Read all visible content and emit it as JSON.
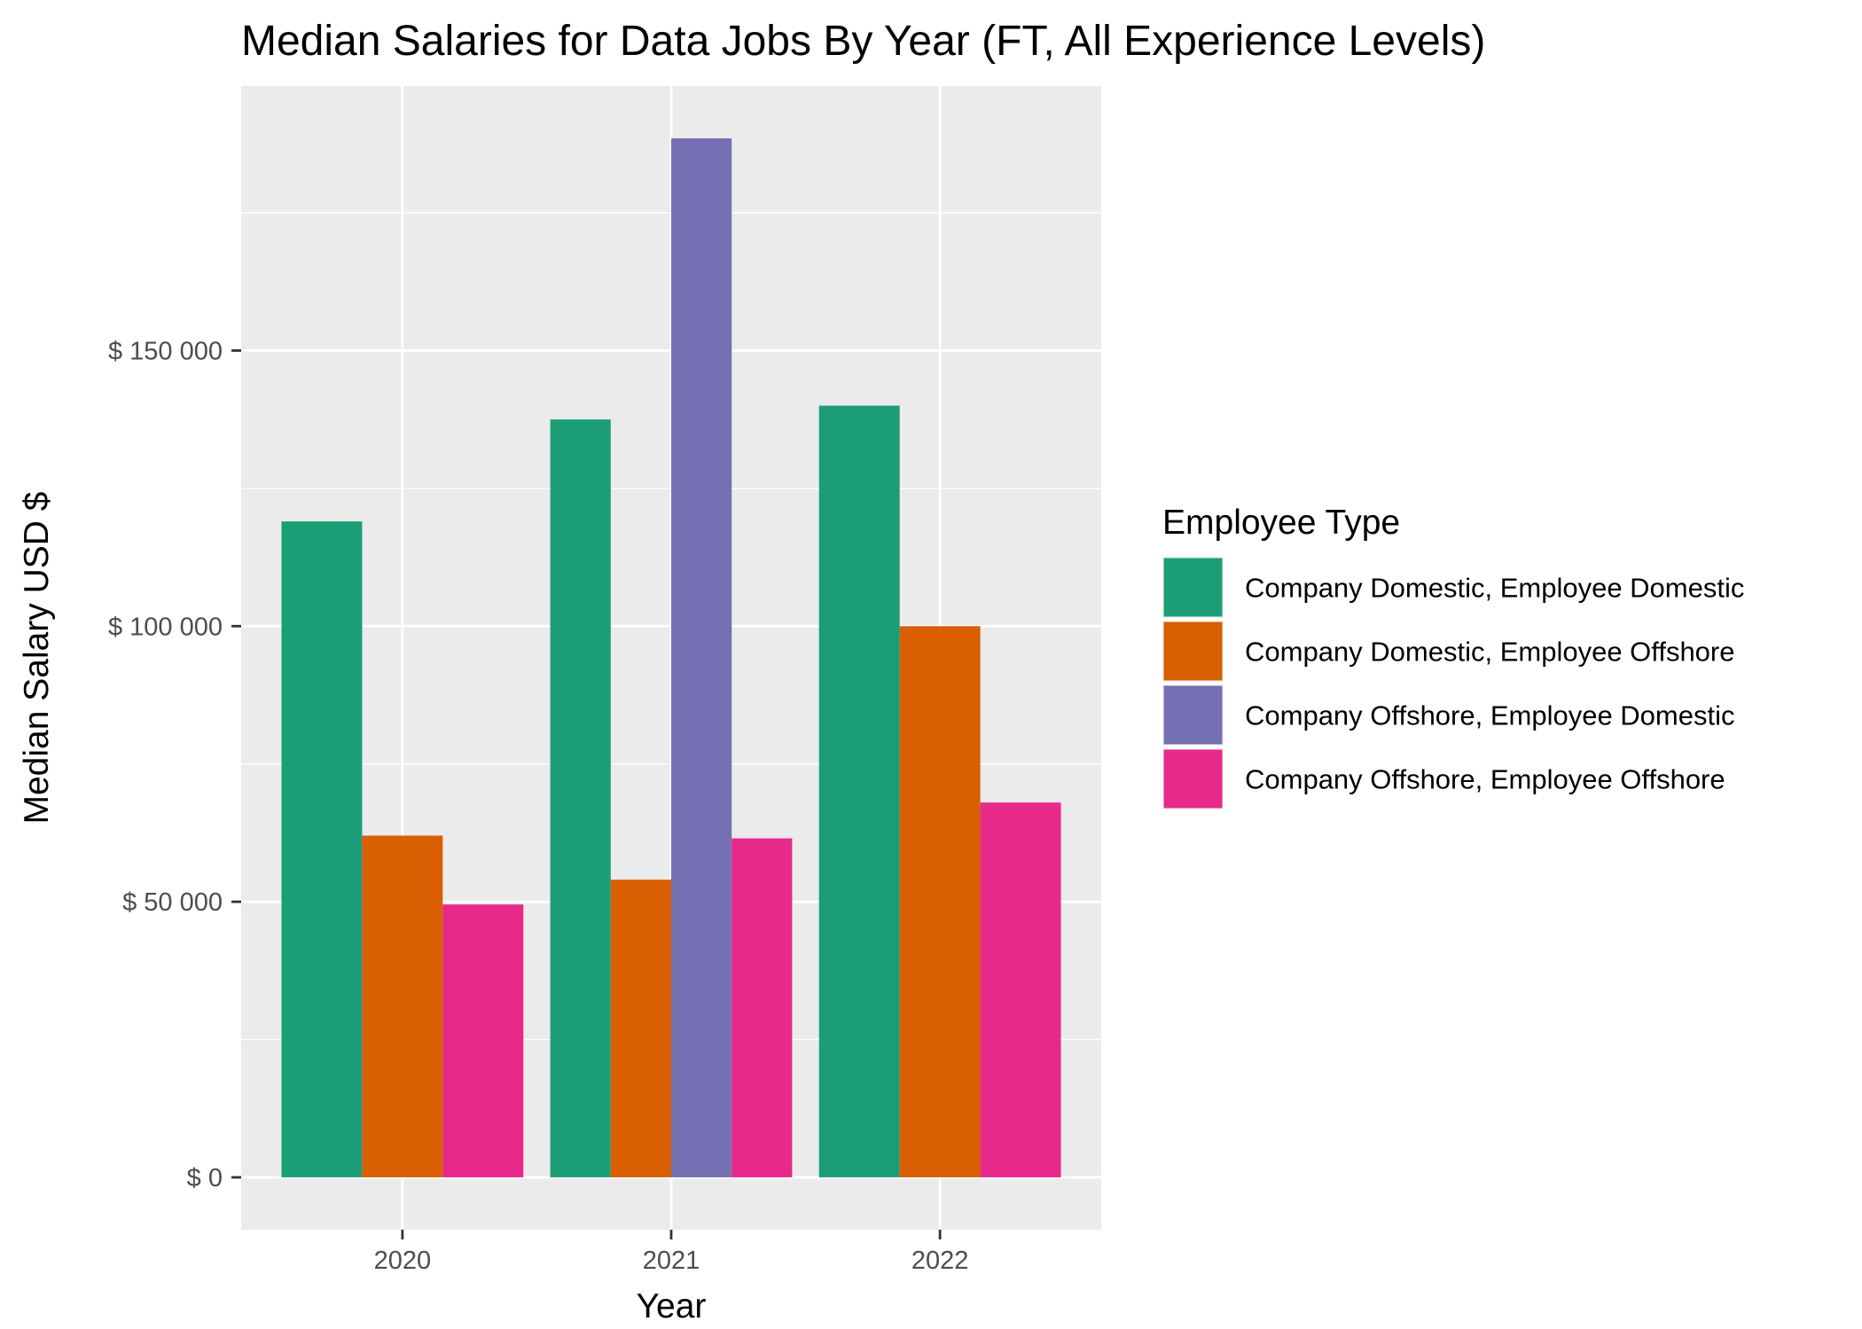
{
  "chart_data": {
    "type": "bar",
    "title": "Median Salaries for Data Jobs By Year (FT, All Experience Levels)",
    "xlabel": "Year",
    "ylabel": "Median Salary USD $",
    "categories": [
      "2020",
      "2021",
      "2022"
    ],
    "ylim": [
      -9500,
      198000
    ],
    "yticks": [
      0,
      50000,
      100000,
      150000
    ],
    "ytick_labels": [
      "$ 0",
      "$ 50 000",
      "$ 100 000",
      "$ 150 000"
    ],
    "grid": true,
    "legend": {
      "title": "Employee Type",
      "placement": "right"
    },
    "series": [
      {
        "name": "Company Domestic, Employee Domestic",
        "color": "#1b9e77",
        "values": [
          119000,
          137500,
          140000
        ]
      },
      {
        "name": "Company Domestic, Employee Offshore",
        "color": "#d95f02",
        "values": [
          62000,
          54000,
          100000
        ]
      },
      {
        "name": "Company Offshore, Employee Domestic",
        "color": "#7570b3",
        "values": [
          null,
          188500,
          null
        ]
      },
      {
        "name": "Company Offshore, Employee Offshore",
        "color": "#e7298a",
        "values": [
          49500,
          61500,
          68000
        ]
      }
    ]
  }
}
